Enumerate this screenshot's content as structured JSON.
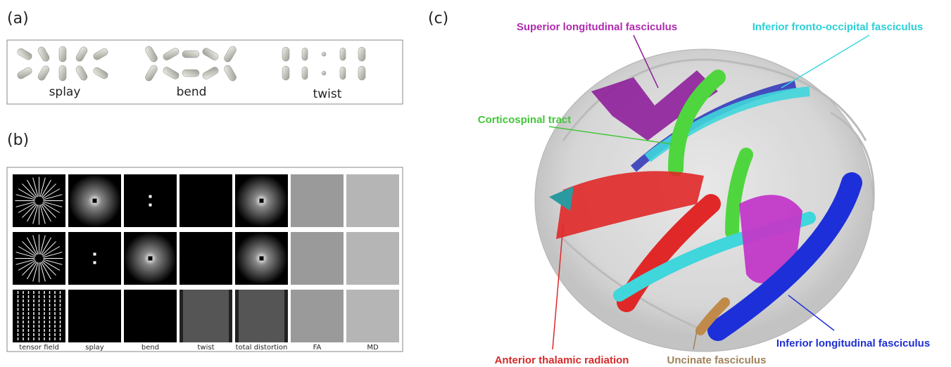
{
  "panel_a": {
    "label": "(a)",
    "captions": [
      "splay",
      "bend",
      "twist"
    ]
  },
  "panel_b": {
    "label": "(b)",
    "columns": [
      "tensor field",
      "splay",
      "bend",
      "twist",
      "total distortion",
      "FA",
      "MD"
    ]
  },
  "panel_c": {
    "label": "(c)",
    "tracts": [
      "Superior longitudinal fasciculus",
      "Inferior fronto-occipital fasciculus",
      "Corticospinal tract",
      "Inferior longitudinal fasciculus",
      "Anterior thalamic  radiation",
      "Uncinate fasciculus"
    ]
  }
}
